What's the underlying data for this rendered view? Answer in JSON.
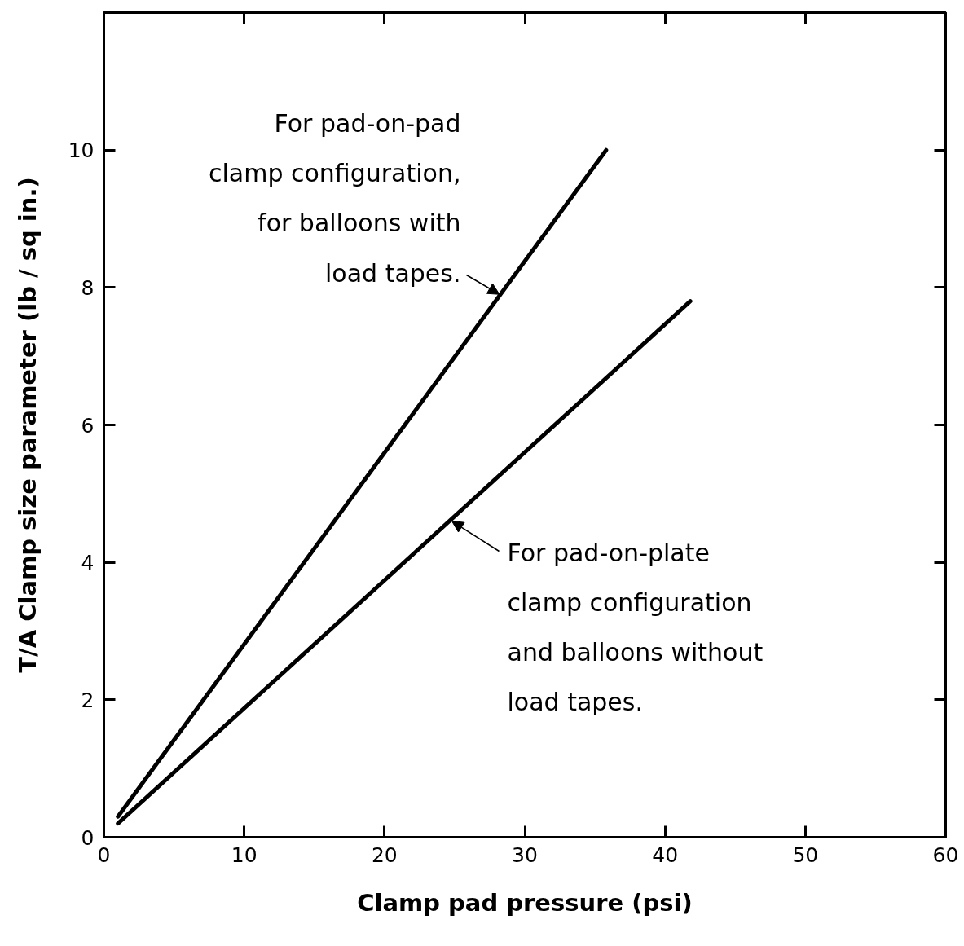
{
  "chart_data": {
    "type": "line",
    "xlabel": "Clamp pad pressure (psi)",
    "ylabel": "T/A Clamp size parameter (lb / sq in.)",
    "xlim": [
      0,
      60
    ],
    "ylim": [
      0,
      12
    ],
    "xticks": [
      0,
      10,
      20,
      30,
      40,
      50,
      60
    ],
    "yticks": [
      0,
      2,
      4,
      6,
      8,
      10
    ],
    "marker": "none",
    "line_style": "solid",
    "series": [
      {
        "color": "#000000",
        "x": [
          1,
          35.8
        ],
        "values": [
          0.3,
          10.0
        ]
      },
      {
        "color": "#000000",
        "x": [
          1,
          41.8
        ],
        "values": [
          0.2,
          7.8
        ]
      }
    ],
    "annotations": [
      {
        "text": "For pad-on-pad\nclamp configuration,\nfor balloons with\nload tapes.",
        "x": 28.2,
        "y": 7.9
      },
      {
        "text": "For pad-on-plate\nclamp configuration\nand balloons without\nload tapes.",
        "x": 24.8,
        "y": 4.6
      }
    ]
  }
}
